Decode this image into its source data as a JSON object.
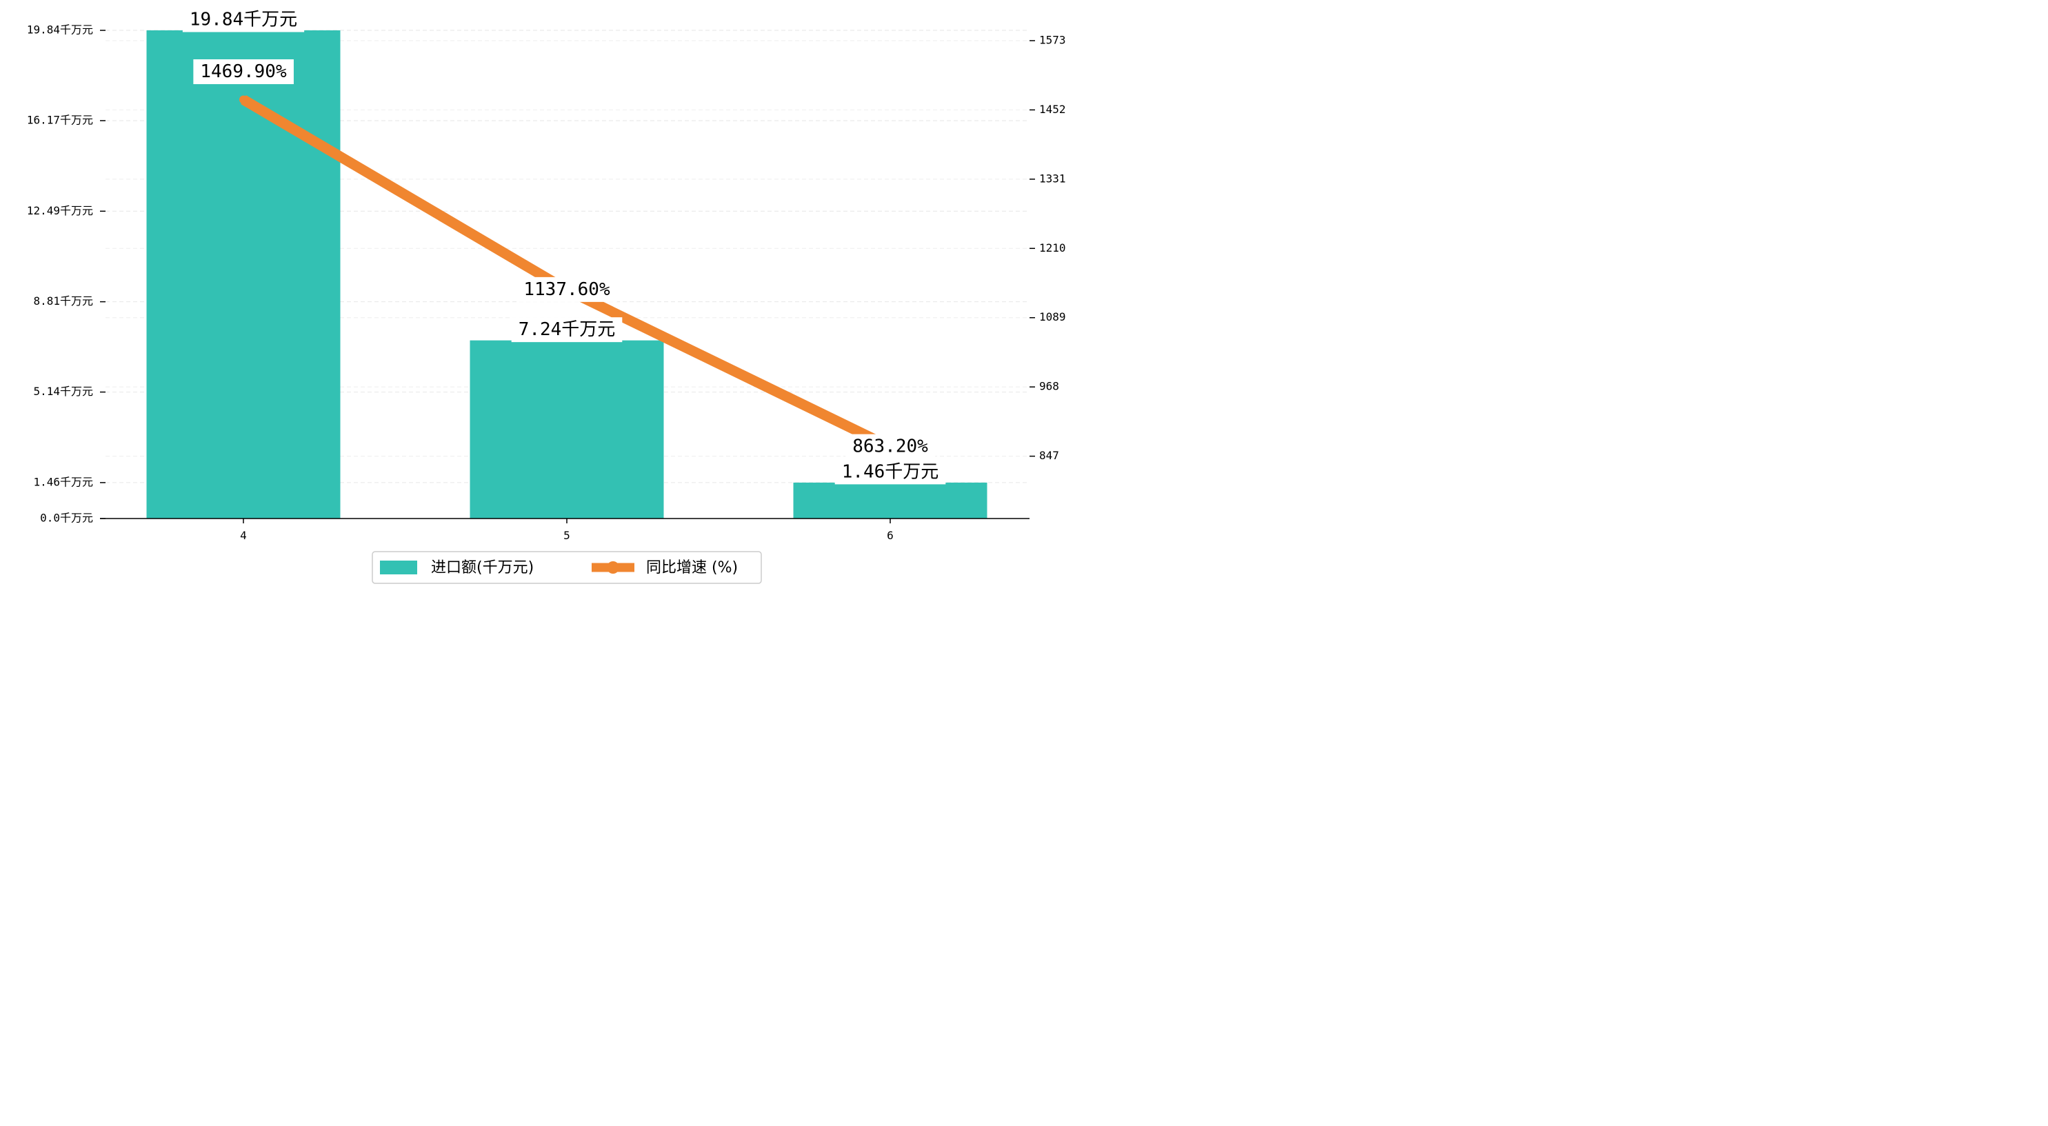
{
  "chart_data": {
    "type": "bar",
    "categories": [
      "4",
      "5",
      "6"
    ],
    "series": [
      {
        "name": "进口额(千万元)",
        "type": "bar",
        "axis": "left",
        "values": [
          19.84,
          7.24,
          1.46
        ],
        "labels": [
          "19.84千万元",
          "7.24千万元",
          "1.46千万元"
        ],
        "color": "#33c1b3"
      },
      {
        "name": "同比增速 (%)",
        "type": "line",
        "axis": "right",
        "values": [
          1469.9,
          1137.6,
          863.2
        ],
        "labels": [
          "1469.90%",
          "1137.60%",
          "863.20%"
        ],
        "color": "#f08630"
      }
    ],
    "y_left": {
      "ticks": [
        0,
        1.46,
        5.14,
        8.81,
        12.49,
        16.17,
        19.84
      ],
      "tick_labels": [
        "0.0千万元",
        "1.46千万元",
        "5.14千万元",
        "8.81千万元",
        "12.49千万元",
        "16.17千万元",
        "19.84千万元"
      ],
      "range": [
        0,
        19.84
      ]
    },
    "y_right": {
      "ticks": [
        847,
        968,
        1089,
        1210,
        1331,
        1452,
        1573
      ],
      "tick_labels": [
        "847",
        "968",
        "1089",
        "1210",
        "1331",
        "1452",
        "1573"
      ],
      "range": [
        738.1,
        1591
      ]
    },
    "grid": true,
    "legend_position": "bottom-center",
    "title": "",
    "xlabel": "",
    "ylabel": ""
  }
}
